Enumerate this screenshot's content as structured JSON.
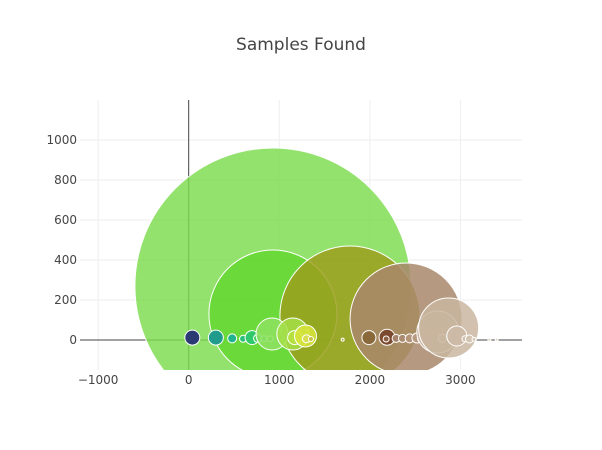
{
  "chart_data": {
    "type": "scatter",
    "title": "Samples Found",
    "xlabel": "",
    "ylabel": "",
    "xlim": [
      -1200,
      3680
    ],
    "ylim": [
      -150,
      1200
    ],
    "x_ticks": [
      -1000,
      0,
      1000,
      2000,
      3000
    ],
    "x_tick_labels": [
      "−1000",
      "0",
      "1000",
      "2000",
      "3000"
    ],
    "y_ticks": [
      0,
      200,
      400,
      600,
      800,
      1000
    ],
    "y_tick_labels": [
      "0",
      "200",
      "400",
      "600",
      "800",
      "1000"
    ],
    "grid": true,
    "points": [
      {
        "x": 930,
        "y": 270,
        "r": 138,
        "color": "#7ddc4e",
        "opacity": 0.82
      },
      {
        "x": 930,
        "y": 130,
        "r": 64,
        "color": "#63d730",
        "opacity": 0.85
      },
      {
        "x": 1780,
        "y": 120,
        "r": 70,
        "color": "#9c9c1c",
        "opacity": 0.82
      },
      {
        "x": 2400,
        "y": 105,
        "r": 56,
        "color": "#a8876a",
        "opacity": 0.85
      },
      {
        "x": 40,
        "y": 12,
        "r": 7.5,
        "color": "#2b3a73",
        "opacity": 1
      },
      {
        "x": 300,
        "y": 12,
        "r": 7.5,
        "color": "#219c8c",
        "opacity": 1
      },
      {
        "x": 480,
        "y": 8,
        "r": 4.5,
        "color": "#22b38e",
        "opacity": 1
      },
      {
        "x": 600,
        "y": 6,
        "r": 3.5,
        "color": "#2bbf7a",
        "opacity": 1
      },
      {
        "x": 700,
        "y": 12,
        "r": 7,
        "color": "#2fc86a",
        "opacity": 1
      },
      {
        "x": 760,
        "y": 8,
        "r": 4,
        "color": "#3ecf5c",
        "opacity": 1
      },
      {
        "x": 830,
        "y": 6,
        "r": 3,
        "color": "#4fd24a",
        "opacity": 1
      },
      {
        "x": 900,
        "y": 6,
        "r": 3,
        "color": "#59d43d",
        "opacity": 1
      },
      {
        "x": 920,
        "y": 30,
        "r": 16,
        "color": "#8ee060",
        "opacity": 0.85
      },
      {
        "x": 1150,
        "y": 30,
        "r": 16,
        "color": "#a5df48",
        "opacity": 0.85
      },
      {
        "x": 1170,
        "y": 12,
        "r": 7,
        "color": "#b6e240",
        "opacity": 0.9
      },
      {
        "x": 1290,
        "y": 20,
        "r": 11,
        "color": "#d6e33a",
        "opacity": 0.9
      },
      {
        "x": 1300,
        "y": 6,
        "r": 4,
        "color": "#d8de52",
        "opacity": 1
      },
      {
        "x": 1350,
        "y": 5,
        "r": 2.5,
        "color": "#c9c24a",
        "opacity": 1
      },
      {
        "x": 1700,
        "y": 2,
        "r": 1.5,
        "color": "#b1a24a",
        "opacity": 1
      },
      {
        "x": 1990,
        "y": 12,
        "r": 7,
        "color": "#8a6a3a",
        "opacity": 1
      },
      {
        "x": 2190,
        "y": 14,
        "r": 8,
        "color": "#7c4a2e",
        "opacity": 1
      },
      {
        "x": 2180,
        "y": 5,
        "r": 3,
        "color": "#8b6040",
        "opacity": 1
      },
      {
        "x": 2290,
        "y": 8,
        "r": 4,
        "color": "#a5826a",
        "opacity": 1
      },
      {
        "x": 2360,
        "y": 8,
        "r": 4,
        "color": "#ac8c70",
        "opacity": 1
      },
      {
        "x": 2440,
        "y": 8,
        "r": 4.5,
        "color": "#b39478",
        "opacity": 1
      },
      {
        "x": 2520,
        "y": 10,
        "r": 5,
        "color": "#b89a80",
        "opacity": 1
      },
      {
        "x": 2560,
        "y": 6,
        "r": 3,
        "color": "#bba087",
        "opacity": 1
      },
      {
        "x": 2620,
        "y": 8,
        "r": 4,
        "color": "#bea58c",
        "opacity": 1
      },
      {
        "x": 2680,
        "y": 22,
        "r": 12,
        "color": "#c1aa91",
        "opacity": 0.9
      },
      {
        "x": 2750,
        "y": 40,
        "r": 21,
        "color": "#c5af98",
        "opacity": 0.85
      },
      {
        "x": 2800,
        "y": 8,
        "r": 4,
        "color": "#c7b39c",
        "opacity": 1
      },
      {
        "x": 2870,
        "y": 60,
        "r": 30,
        "color": "#c9b6a0",
        "opacity": 0.85
      },
      {
        "x": 2960,
        "y": 20,
        "r": 10,
        "color": "#ccbaa6",
        "opacity": 0.9
      },
      {
        "x": 3050,
        "y": 6,
        "r": 3,
        "color": "#d0c0ad",
        "opacity": 1
      },
      {
        "x": 3100,
        "y": 5,
        "r": 4,
        "color": "#d3c4b2",
        "opacity": 1
      },
      {
        "x": 3150,
        "y": 3,
        "r": 2,
        "color": "#d6c8b6",
        "opacity": 1
      },
      {
        "x": 3320,
        "y": 2,
        "r": 1.5,
        "color": "#d9ccbb",
        "opacity": 1
      },
      {
        "x": 3400,
        "y": 2,
        "r": 1.5,
        "color": "#dccfbf",
        "opacity": 1
      }
    ]
  }
}
